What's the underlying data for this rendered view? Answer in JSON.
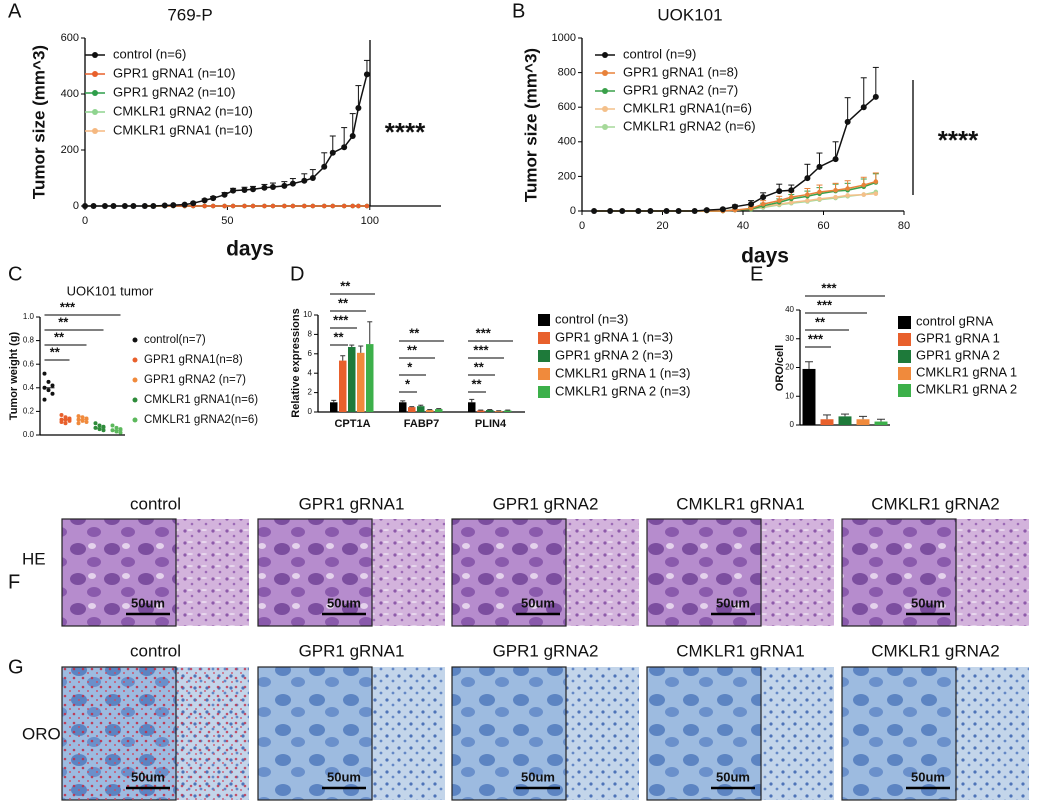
{
  "chart_data": [
    {
      "type": "line",
      "panel": "A",
      "title": "769-P",
      "x_label": "days",
      "y_label": "Tumor size (mm^3)",
      "annotation": "****",
      "x": [
        0,
        3,
        7,
        10,
        14,
        17,
        21,
        24,
        28,
        31,
        35,
        38,
        42,
        45,
        49,
        52,
        56,
        59,
        63,
        66,
        70,
        73,
        77,
        80,
        84,
        87,
        91,
        94,
        96,
        99
      ],
      "xlim": [
        0,
        125
      ],
      "xticks": [
        0,
        50,
        100
      ],
      "ylim": [
        0,
        600
      ],
      "yticks": [
        0,
        200,
        400,
        600
      ],
      "series": [
        {
          "name": "control (n=6)",
          "color": "#111111",
          "values": [
            0,
            0,
            0,
            0,
            0,
            0,
            0,
            0,
            2,
            3,
            5,
            10,
            20,
            28,
            40,
            55,
            57,
            60,
            65,
            68,
            72,
            80,
            90,
            100,
            140,
            190,
            210,
            250,
            350,
            470
          ],
          "errors": [
            0,
            0,
            0,
            0,
            0,
            0,
            0,
            0,
            1,
            1,
            2,
            3,
            5,
            6,
            8,
            8,
            10,
            10,
            12,
            14,
            15,
            18,
            25,
            30,
            50,
            60,
            70,
            80,
            80,
            50
          ]
        },
        {
          "name": "GPR1 gRNA1 (n=10)",
          "color": "#e8602c",
          "values": [
            null,
            null,
            null,
            null,
            null,
            null,
            0,
            0,
            0,
            0,
            0,
            0,
            0,
            0,
            0,
            0,
            0,
            0,
            0,
            0,
            0,
            0,
            0,
            0,
            0,
            0,
            0,
            0,
            0,
            0
          ]
        },
        {
          "name": "GPR1 gRNA2 (n=10)",
          "color": "#2e9e4a",
          "values": [
            null,
            null,
            null,
            null,
            null,
            null,
            0,
            0,
            0,
            0,
            0,
            0,
            0,
            0,
            0,
            0,
            0,
            0,
            0,
            0,
            0,
            0,
            0,
            0,
            0,
            0,
            0,
            0,
            0,
            0
          ]
        },
        {
          "name": "CMKLR1 gRNA2 (n=10)",
          "color": "#8fd48f",
          "values": [
            null,
            null,
            null,
            null,
            null,
            null,
            0,
            0,
            0,
            0,
            0,
            0,
            0,
            0,
            0,
            0,
            0,
            0,
            0,
            0,
            0,
            0,
            0,
            0,
            0,
            0,
            0,
            0,
            0,
            0
          ]
        },
        {
          "name": "CMKLR1 gRNA1 (n=10)",
          "color": "#f5b880",
          "values": [
            null,
            null,
            null,
            null,
            null,
            null,
            0,
            0,
            0,
            0,
            0,
            0,
            0,
            0,
            0,
            0,
            0,
            0,
            0,
            0,
            0,
            0,
            0,
            0,
            0,
            0,
            0,
            0,
            0,
            0
          ]
        }
      ]
    },
    {
      "type": "line",
      "panel": "B",
      "title": "UOK101",
      "x_label": "days",
      "y_label": "Tumor size (mm^3)",
      "annotation": "****",
      "x": [
        3,
        7,
        10,
        14,
        17,
        21,
        24,
        28,
        31,
        35,
        38,
        42,
        45,
        49,
        52,
        56,
        59,
        63,
        66,
        70,
        73
      ],
      "xlim": [
        0,
        80
      ],
      "xticks": [
        0,
        20,
        40,
        60,
        80
      ],
      "ylim": [
        0,
        1000
      ],
      "yticks": [
        0,
        200,
        400,
        600,
        800,
        1000
      ],
      "series": [
        {
          "name": "control  (n=9)",
          "color": "#111111",
          "values": [
            0,
            0,
            0,
            0,
            0,
            0,
            0,
            0,
            5,
            10,
            25,
            40,
            80,
            115,
            120,
            190,
            255,
            300,
            515,
            600,
            660
          ],
          "errors": [
            0,
            0,
            0,
            0,
            0,
            0,
            0,
            0,
            5,
            5,
            10,
            20,
            25,
            40,
            30,
            80,
            80,
            100,
            140,
            170,
            170
          ]
        },
        {
          "name": "GPR1 gRNA1 (n=8)",
          "color": "#e8823a",
          "values": [
            0,
            0,
            0,
            0,
            0,
            0,
            0,
            0,
            0,
            0,
            5,
            15,
            40,
            60,
            80,
            95,
            110,
            120,
            130,
            150,
            170
          ],
          "errors": [
            0,
            0,
            0,
            0,
            0,
            0,
            0,
            0,
            0,
            0,
            5,
            10,
            20,
            25,
            30,
            35,
            40,
            40,
            45,
            45,
            50
          ]
        },
        {
          "name": "GPR1 gRNA2 (n=7)",
          "color": "#3aa04a",
          "values": [
            0,
            0,
            0,
            0,
            0,
            0,
            0,
            0,
            0,
            0,
            5,
            10,
            30,
            50,
            70,
            85,
            100,
            115,
            120,
            140,
            165
          ],
          "errors": [
            0,
            0,
            0,
            0,
            0,
            0,
            0,
            0,
            0,
            0,
            5,
            10,
            15,
            20,
            25,
            30,
            35,
            40,
            40,
            45,
            50
          ]
        },
        {
          "name": "CMKLR1 gRNA1(n=6)",
          "color": "#f4c08a",
          "values": [
            0,
            0,
            0,
            0,
            0,
            0,
            0,
            0,
            0,
            0,
            5,
            10,
            25,
            40,
            50,
            60,
            70,
            80,
            90,
            95,
            100
          ]
        },
        {
          "name": "CMKLR1 gRNA2 (n=6)",
          "color": "#a6d99a",
          "values": [
            0,
            0,
            0,
            0,
            0,
            0,
            0,
            0,
            0,
            0,
            5,
            10,
            20,
            35,
            45,
            55,
            65,
            75,
            85,
            95,
            110
          ]
        }
      ]
    },
    {
      "type": "strip",
      "panel": "C",
      "title": "UOK101  tumor",
      "y_label": "Tumor weight (g)",
      "ylim": [
        0,
        1
      ],
      "yticks": [
        {
          "value": 0,
          "label": "0.0"
        },
        0.2,
        0.4,
        0.6,
        0.8,
        {
          "value": 1,
          "label": "1.0"
        }
      ],
      "significance": [
        "**",
        "**",
        "**",
        "***"
      ],
      "series": [
        {
          "name": "control(n=7)",
          "color": "#111111",
          "values": [
            0.52,
            0.45,
            0.42,
            0.4,
            0.38,
            0.35,
            0.3
          ]
        },
        {
          "name": "GPR1 gRNA1(n=8)",
          "color": "#e8602c",
          "values": [
            0.17,
            0.15,
            0.14,
            0.13,
            0.13,
            0.12,
            0.11,
            0.1
          ]
        },
        {
          "name": "GPR1 gRNA2 (n=7)",
          "color": "#f08a3c",
          "values": [
            0.16,
            0.15,
            0.14,
            0.13,
            0.12,
            0.11,
            0.1
          ]
        },
        {
          "name": "CMKLR1 gRNA1(n=6)",
          "color": "#2e8b3a",
          "values": [
            0.1,
            0.08,
            0.07,
            0.06,
            0.05,
            0.04
          ]
        },
        {
          "name": "CMKLR1 gRNA2(n=6)",
          "color": "#5cb85c",
          "values": [
            0.08,
            0.06,
            0.05,
            0.04,
            0.03,
            0.02
          ]
        }
      ]
    },
    {
      "type": "grouped-bar",
      "panel": "D",
      "y_label": "Relative expressions",
      "categories": [
        "CPT1A",
        "FABP7",
        "PLIN4"
      ],
      "ylim": [
        0,
        10
      ],
      "yticks": [
        0,
        2,
        4,
        6,
        8,
        10
      ],
      "significance": [
        [
          "**",
          "***",
          "**",
          "**"
        ],
        [
          "*",
          "*",
          "**",
          "**"
        ],
        [
          "**",
          "**",
          "***",
          "***"
        ]
      ],
      "series": [
        {
          "name": "control  (n=3)",
          "color": "#000000",
          "values": [
            1,
            1,
            1
          ],
          "errors": [
            0.2,
            0.15,
            0.3
          ]
        },
        {
          "name": "GPR1 gRNA 1 (n=3)",
          "color": "#e8602c",
          "values": [
            5.3,
            0.5,
            0.15
          ],
          "errors": [
            0.5,
            0.05,
            0.05
          ]
        },
        {
          "name": "GPR1 gRNA 2 (n=3)",
          "color": "#1e7a3a",
          "values": [
            6.7,
            0.6,
            0.2
          ],
          "errors": [
            0.2,
            0.1,
            0.05
          ]
        },
        {
          "name": "CMKLR1 gRNA 1 (n=3)",
          "color": "#f08a3c",
          "values": [
            6.1,
            0.2,
            0.1
          ],
          "errors": [
            0.7,
            0.05,
            0.03
          ]
        },
        {
          "name": "CMKLR1 gRNA 2 (n=3)",
          "color": "#3cb04a",
          "values": [
            7,
            0.3,
            0.15
          ],
          "errors": [
            2.3,
            0.05,
            0.05
          ]
        }
      ]
    },
    {
      "type": "bar",
      "panel": "E",
      "y_label": "ORO/cell",
      "categories": [
        "control gRNA",
        "GPR1 gRNA 1",
        "GPR1 gRNA 2",
        "CMKLR1 gRNA 1",
        "CMKLR1 gRNA 2"
      ],
      "colors": [
        "#000000",
        "#e8602c",
        "#1e7a3a",
        "#f08a3c",
        "#3cb04a"
      ],
      "values": [
        19.5,
        2,
        3,
        2,
        1.2
      ],
      "errors": [
        2.5,
        1.5,
        0.8,
        1,
        0.8
      ],
      "ylim": [
        0,
        40
      ],
      "yticks": [
        0,
        10,
        20,
        30,
        40
      ],
      "significance": [
        "***",
        "**",
        "***",
        "***"
      ]
    }
  ],
  "histology": {
    "scale_label": "50um",
    "rows": [
      {
        "panel": "F",
        "label": "HE",
        "columns": [
          "control",
          "GPR1 gRNA1",
          "GPR1 gRNA2",
          "CMKLR1 gRNA1",
          "CMKLR1 gRNA2"
        ]
      },
      {
        "panel": "G",
        "label": "ORO",
        "columns": [
          "control",
          "GPR1 gRNA1",
          "GPR1 gRNA2",
          "CMKLR1 gRNA1",
          "CMKLR1 gRNA2"
        ]
      }
    ]
  }
}
